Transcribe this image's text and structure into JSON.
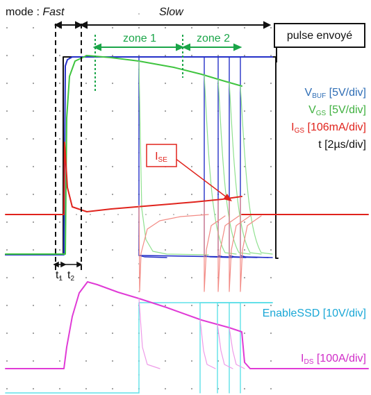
{
  "chart_data": {
    "type": "line",
    "header": {
      "mode_prefix": "mode : ",
      "mode_fast": "Fast",
      "mode_slow": "Slow",
      "zone1": "zone 1",
      "zone2": "zone 2",
      "pulse": "pulse envoyé"
    },
    "time_labels": [
      {
        "main": "t",
        "sub": "1"
      },
      {
        "main": "t",
        "sub": "2"
      }
    ],
    "annotation": {
      "main": "I",
      "sub": "SE"
    },
    "legend": [
      {
        "id": "vbuf",
        "main": "V",
        "sub": "BUF",
        "scale": "[5V/div]",
        "color": "#2e6db5"
      },
      {
        "id": "vgs",
        "main": "V",
        "sub": "GS",
        "scale": "[5V/div]",
        "color": "#3fb03f"
      },
      {
        "id": "igs",
        "main": "I",
        "sub": "GS",
        "scale": "[106mA/div]",
        "color": "#e0231c"
      },
      {
        "id": "time",
        "main": "t",
        "sub": "",
        "scale": "[2µs/div]",
        "color": "#111111"
      }
    ],
    "enable_label": "EnableSSD [10V/div]",
    "ids_label": {
      "main": "I",
      "sub": "DS",
      "scale": "[100A/div]"
    },
    "colors": {
      "pulse": "#111111",
      "vbuf": "#2430c8",
      "vgs": "#3fc43f",
      "vgs_light": "#8ee08e",
      "igs": "#e0231c",
      "igs_light": "#f28a84",
      "enable": "#5fe0e8",
      "ids": "#e03ad6",
      "ids_light": "#ee9ae8",
      "zone": "#1aa548",
      "enable_text": "#19a7d6",
      "ids_text": "#d02cc8"
    }
  }
}
